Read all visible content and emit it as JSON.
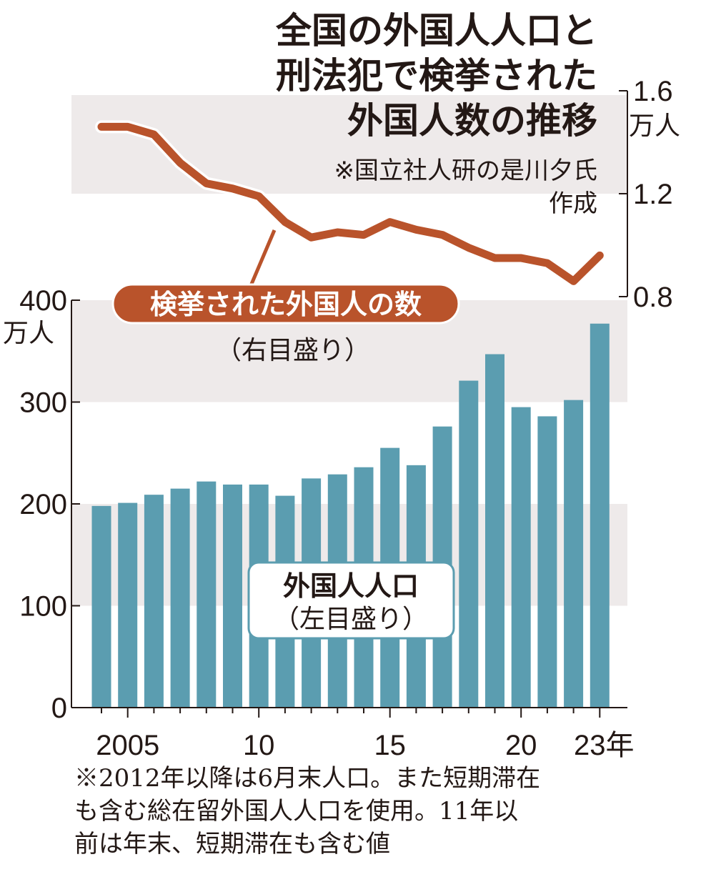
{
  "chart_data": [
    {
      "type": "line",
      "title_lines": [
        "全国の外国人人口と",
        "刑法犯で検挙された",
        "外国人数の推移"
      ],
      "source_lines": [
        "※国立社人研の是川夕氏",
        "作成"
      ],
      "series_label": "検挙された外国人の数",
      "series_note": "（右目盛り）",
      "axis": "right",
      "unit": "万人",
      "ylim": [
        0.8,
        1.6
      ],
      "yticks": [
        "0.8",
        "1.2",
        "1.6"
      ],
      "x": [
        2004,
        2005,
        2006,
        2007,
        2008,
        2009,
        2010,
        2011,
        2012,
        2013,
        2014,
        2015,
        2016,
        2017,
        2018,
        2019,
        2020,
        2021,
        2022,
        2023
      ],
      "values": [
        1.46,
        1.46,
        1.43,
        1.32,
        1.24,
        1.22,
        1.19,
        1.09,
        1.03,
        1.05,
        1.04,
        1.09,
        1.06,
        1.04,
        0.99,
        0.95,
        0.95,
        0.93,
        0.86,
        0.96
      ],
      "color": "#b9532b"
    },
    {
      "type": "bar",
      "series_label": "外国人人口",
      "series_note": "（左目盛り）",
      "axis": "left",
      "unit": "万人",
      "ylim": [
        0,
        400
      ],
      "yticks": [
        "0",
        "100",
        "200",
        "300",
        "400"
      ],
      "x": [
        2004,
        2005,
        2006,
        2007,
        2008,
        2009,
        2010,
        2011,
        2012,
        2013,
        2014,
        2015,
        2016,
        2017,
        2018,
        2019,
        2020,
        2021,
        2022,
        2023
      ],
      "values": [
        198,
        201,
        209,
        215,
        222,
        219,
        219,
        208,
        225,
        229,
        236,
        255,
        238,
        276,
        321,
        347,
        295,
        286,
        302,
        377
      ],
      "xtick_labels": [
        {
          "year": 2005,
          "label": "2005"
        },
        {
          "year": 2010,
          "label": "10"
        },
        {
          "year": 2015,
          "label": "15"
        },
        {
          "year": 2020,
          "label": "20"
        },
        {
          "year": 2023,
          "label": "23年"
        }
      ],
      "color": "#5b9db0"
    }
  ],
  "footnote_lines": [
    "※2012年以降は6月末人口。また短期滞在",
    "も含む総在留外国人人口を使用。11年以",
    "前は年末、短期滞在も含む値"
  ]
}
